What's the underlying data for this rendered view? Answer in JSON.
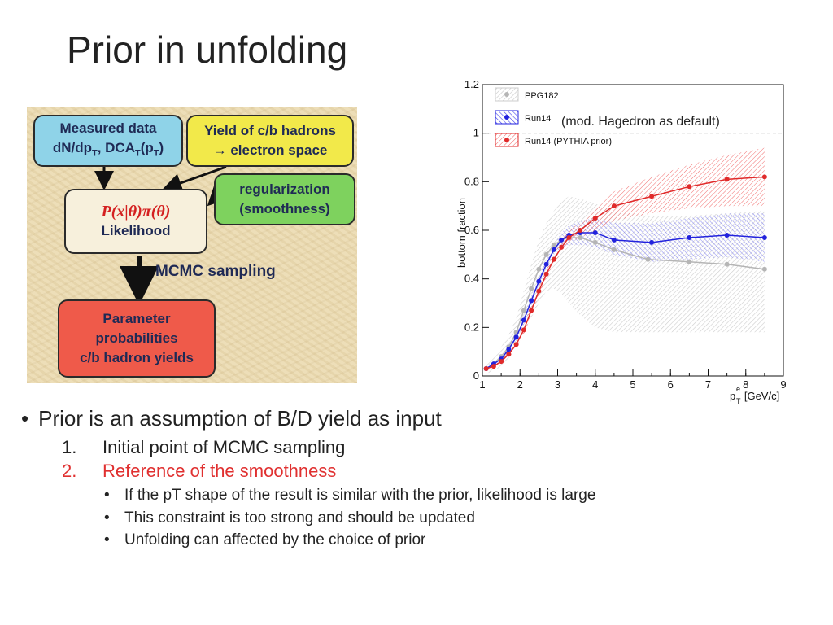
{
  "slide": {
    "title": "Prior in unfolding",
    "note": "(mod. Hagedron as default)"
  },
  "flowchart": {
    "measured": [
      "Measured data",
      "dN/dp",
      "T",
      ", DCA",
      "T",
      "(p",
      "T",
      ")"
    ],
    "yield": [
      "Yield of c/b hadrons",
      "→ electron space"
    ],
    "regularization": [
      "regularization",
      "(smoothness)"
    ],
    "likelihood": [
      "P(x|θ)π(θ)",
      "Likelihood"
    ],
    "mcmc": "MCMC sampling",
    "parameter": [
      "Parameter",
      "probabilities",
      "c/b hadron yields"
    ]
  },
  "bullets": {
    "main": "Prior is an assumption of B/D yield as input",
    "numbered": [
      {
        "num": "1.",
        "text": "Initial point of MCMC sampling"
      },
      {
        "num": "2.",
        "text": "Reference of the smoothness"
      }
    ],
    "sub": [
      "If the pT shape of the result is similar with the prior, likelihood is large",
      "This constraint is too strong and should be updated",
      "Unfolding can affected by the choice of prior"
    ]
  },
  "chart_data": {
    "type": "line",
    "title": "",
    "ylabel": "bottom fraction",
    "xlabel": "p^e_T [GeV/c]",
    "xlabel_main": "p",
    "xlabel_sup": "e",
    "xlabel_sub": "T",
    "xlabel_unit": " [GeV/c]",
    "xlim": [
      1,
      9
    ],
    "ylim": [
      0,
      1.2
    ],
    "xticks": [
      "1",
      "2",
      "3",
      "4",
      "5",
      "6",
      "7",
      "8",
      "9"
    ],
    "yticks": [
      "0",
      "0.2",
      "0.4",
      "0.6",
      "0.8",
      "1",
      "1.2"
    ],
    "reference_line": 1.0,
    "legend_position": "top-left",
    "colors": {
      "ppg": "#b5b5b5",
      "run14": "#2222dd",
      "pythia": "#e02a2a"
    },
    "series": [
      {
        "name": "PPG182",
        "x": [
          1.1,
          1.3,
          1.5,
          1.7,
          1.9,
          2.1,
          2.3,
          2.5,
          2.7,
          2.9,
          3.1,
          3.3,
          3.6,
          4.0,
          4.5,
          5.4,
          6.5,
          7.5,
          8.5
        ],
        "values": [
          0.03,
          0.05,
          0.08,
          0.12,
          0.18,
          0.27,
          0.36,
          0.44,
          0.5,
          0.54,
          0.56,
          0.57,
          0.57,
          0.55,
          0.52,
          0.48,
          0.47,
          0.46,
          0.44
        ],
        "band_lo": [
          0.01,
          0.02,
          0.04,
          0.07,
          0.12,
          0.18,
          0.24,
          0.3,
          0.35,
          0.36,
          0.34,
          0.3,
          0.25,
          0.2,
          0.18,
          0.18,
          0.18,
          0.18,
          0.18
        ],
        "band_hi": [
          0.05,
          0.08,
          0.12,
          0.17,
          0.24,
          0.35,
          0.46,
          0.56,
          0.63,
          0.68,
          0.72,
          0.74,
          0.73,
          0.71,
          0.68,
          0.66,
          0.66,
          0.67,
          0.68
        ]
      },
      {
        "name": "Run14",
        "x": [
          1.1,
          1.3,
          1.5,
          1.7,
          1.9,
          2.1,
          2.3,
          2.5,
          2.7,
          2.9,
          3.1,
          3.3,
          3.6,
          4.0,
          4.5,
          5.5,
          6.5,
          7.5,
          8.5
        ],
        "values": [
          0.03,
          0.05,
          0.07,
          0.11,
          0.16,
          0.23,
          0.31,
          0.39,
          0.46,
          0.52,
          0.56,
          0.58,
          0.59,
          0.59,
          0.56,
          0.55,
          0.57,
          0.58,
          0.57
        ],
        "band_lo": [
          0.02,
          0.04,
          0.06,
          0.1,
          0.15,
          0.21,
          0.29,
          0.37,
          0.44,
          0.5,
          0.53,
          0.54,
          0.54,
          0.53,
          0.5,
          0.47,
          0.48,
          0.49,
          0.47
        ],
        "band_hi": [
          0.04,
          0.06,
          0.08,
          0.12,
          0.17,
          0.25,
          0.33,
          0.41,
          0.48,
          0.54,
          0.59,
          0.62,
          0.64,
          0.65,
          0.63,
          0.63,
          0.65,
          0.67,
          0.67
        ]
      },
      {
        "name": "Run14 (PYTHIA prior)",
        "x": [
          1.1,
          1.3,
          1.5,
          1.7,
          1.9,
          2.1,
          2.3,
          2.5,
          2.7,
          2.9,
          3.1,
          3.3,
          3.6,
          4.0,
          4.5,
          5.5,
          6.5,
          7.5,
          8.5
        ],
        "values": [
          0.03,
          0.04,
          0.06,
          0.09,
          0.13,
          0.19,
          0.27,
          0.35,
          0.42,
          0.48,
          0.53,
          0.57,
          0.6,
          0.65,
          0.7,
          0.74,
          0.78,
          0.81,
          0.82
        ],
        "band_lo": [
          0.02,
          0.03,
          0.05,
          0.08,
          0.12,
          0.17,
          0.25,
          0.33,
          0.4,
          0.46,
          0.51,
          0.55,
          0.57,
          0.6,
          0.64,
          0.67,
          0.69,
          0.7,
          0.7
        ],
        "band_hi": [
          0.04,
          0.05,
          0.07,
          0.1,
          0.14,
          0.21,
          0.29,
          0.37,
          0.44,
          0.51,
          0.56,
          0.6,
          0.63,
          0.69,
          0.76,
          0.82,
          0.87,
          0.91,
          0.94
        ]
      }
    ]
  }
}
